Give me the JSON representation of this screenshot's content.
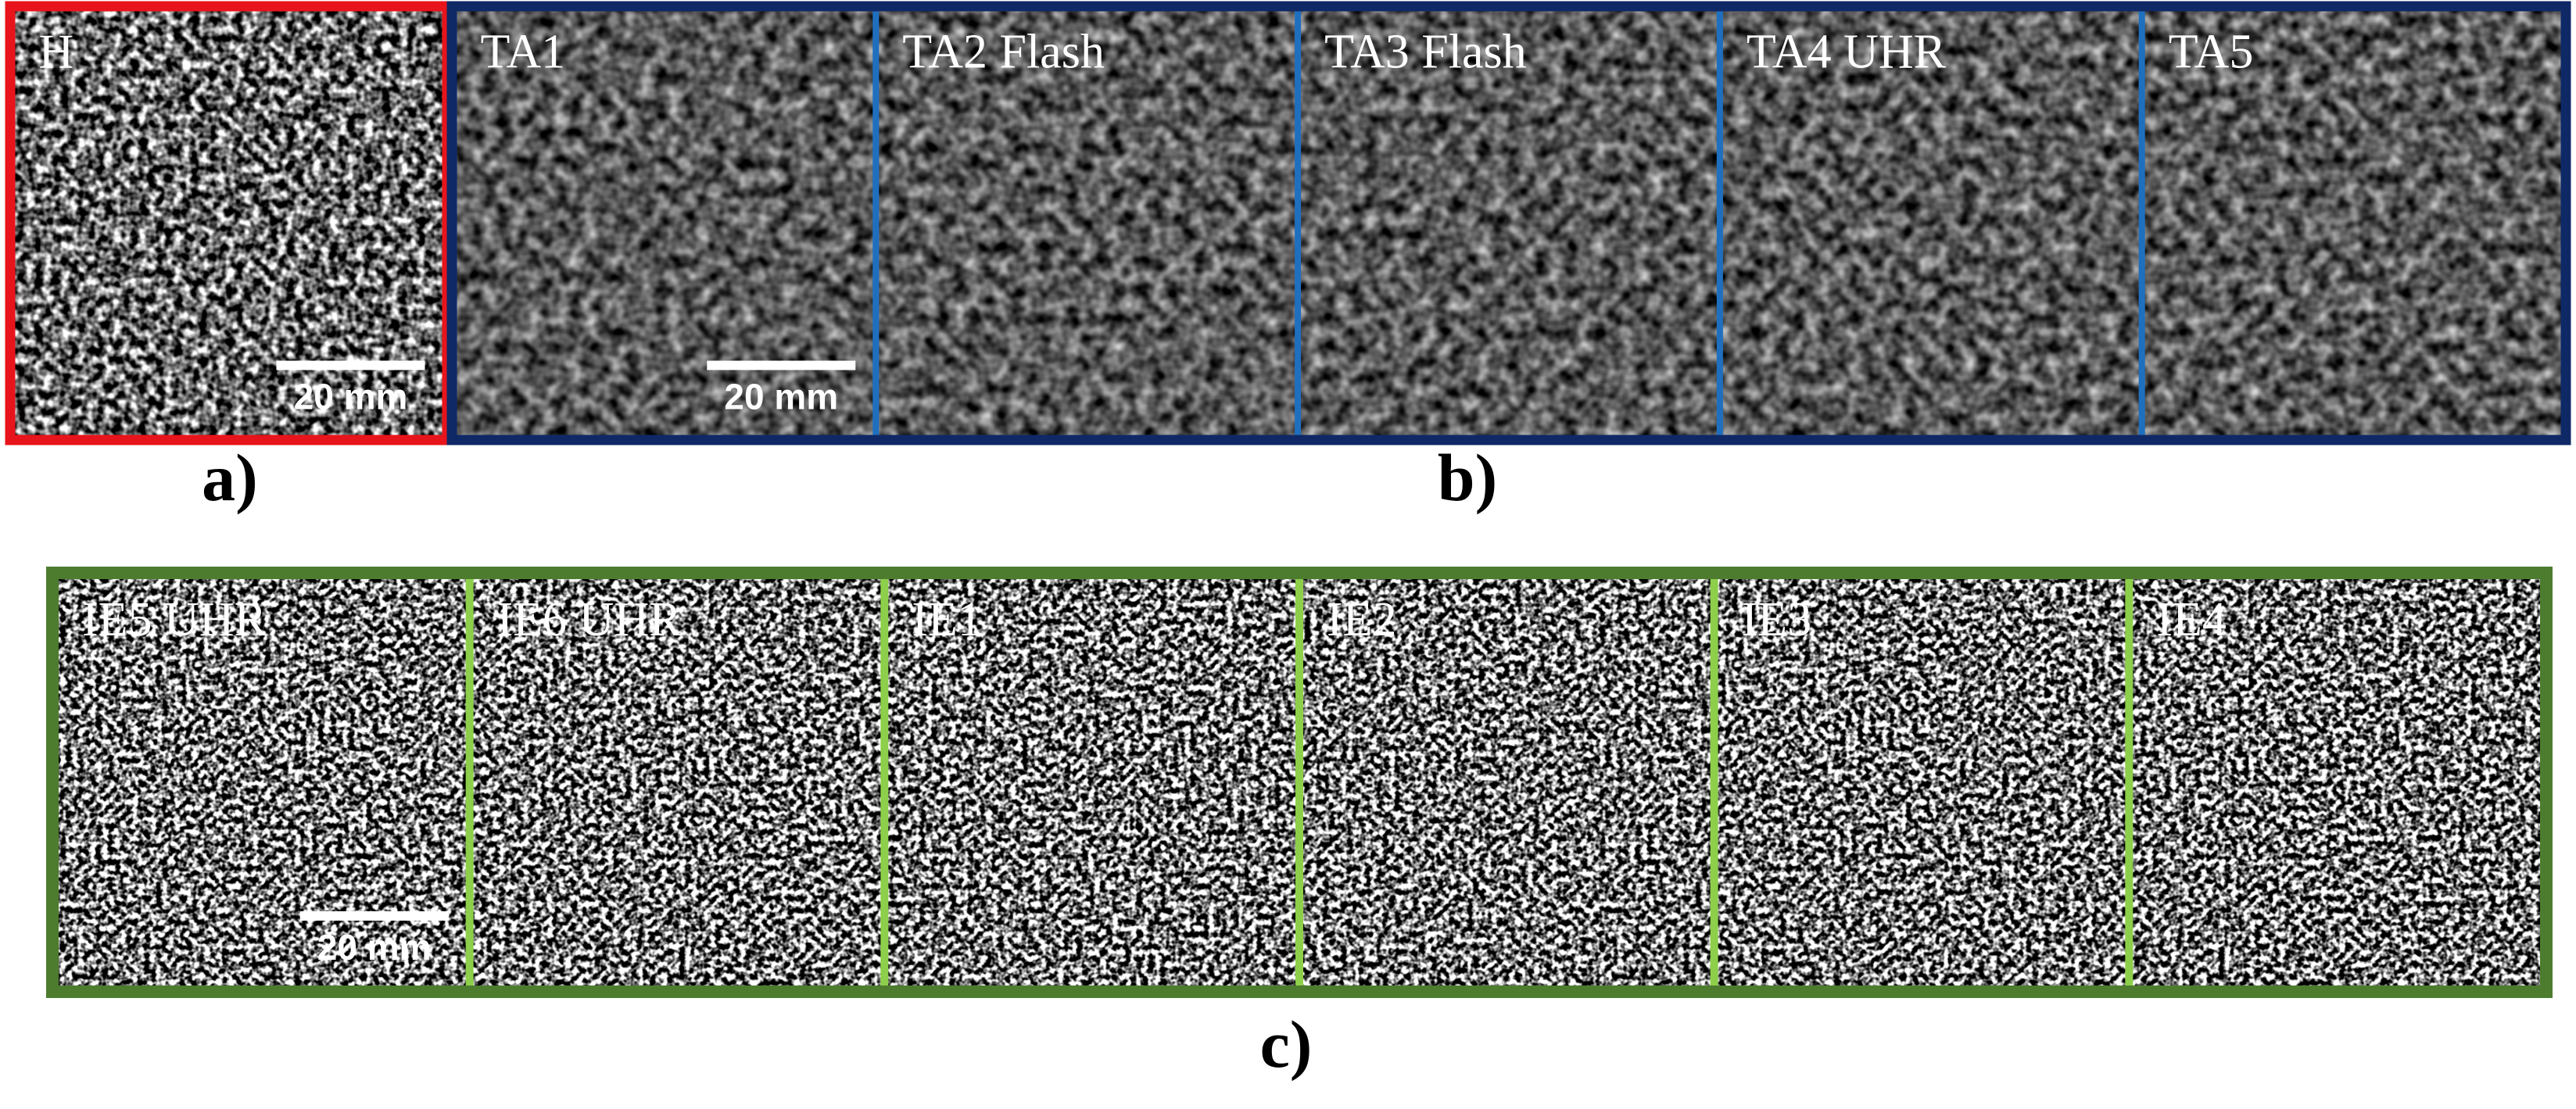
{
  "groups": [
    {
      "caption": "a)",
      "panels": [
        {
          "label": "H",
          "scale_bar": "20 mm"
        }
      ]
    },
    {
      "caption": "b)",
      "panels": [
        {
          "label": "TA1",
          "scale_bar": "20 mm"
        },
        {
          "label": "TA2 Flash"
        },
        {
          "label": "TA3 Flash"
        },
        {
          "label": "TA4 UHR"
        },
        {
          "label": "TA5"
        }
      ]
    },
    {
      "caption": "c)",
      "panels": [
        {
          "label": "IE5 UHR",
          "scale_bar": "20 mm"
        },
        {
          "label": "IE6 UHR"
        },
        {
          "label": "IE1"
        },
        {
          "label": "IE2"
        },
        {
          "label": "IE3"
        },
        {
          "label": "IE4"
        }
      ]
    }
  ]
}
